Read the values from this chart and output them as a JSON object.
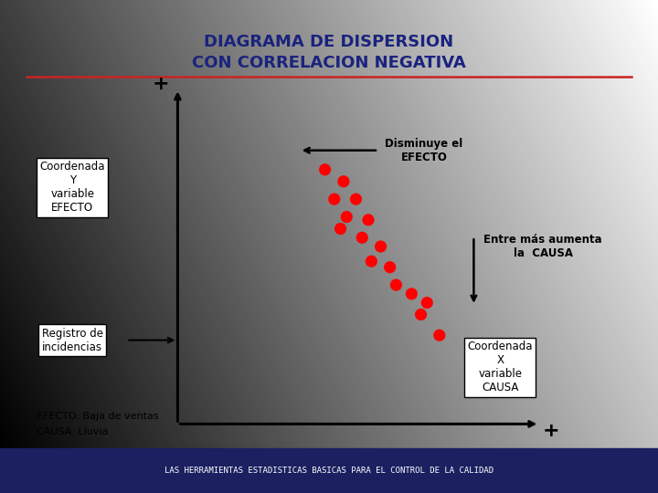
{
  "title_line1": "DIAGRAMA DE DISPERSION",
  "title_line2": "CON CORRELACION NEGATIVA",
  "title_color": "#1a237e",
  "title_fontsize": 13,
  "footer_text": "LAS HERRAMIENTAS ESTADISTICAS BASICAS PARA EL CONTROL DE LA CALIDAD",
  "footer_color": "#ffffff",
  "footer_bg": "#1a2060",
  "red_line_color": "#cc2222",
  "scatter_x": [
    0.37,
    0.43,
    0.4,
    0.47,
    0.44,
    0.51,
    0.49,
    0.42,
    0.55,
    0.52,
    0.58,
    0.6,
    0.65,
    0.7,
    0.68,
    0.74
  ],
  "scatter_y": [
    0.76,
    0.72,
    0.66,
    0.66,
    0.6,
    0.59,
    0.53,
    0.56,
    0.5,
    0.45,
    0.43,
    0.37,
    0.34,
    0.31,
    0.27,
    0.2
  ],
  "dot_color": "#ff0000",
  "dot_size": 90,
  "label_coordenada": "Coordenada\nY\nvariable\nEFECTO",
  "label_registro": "Registro de\nincidencias",
  "label_efecto": "EFECTO: Baja de ventas",
  "label_causa": "CAUSA: Lluvia",
  "label_disminuye": "Disminuye el\nEFECTO",
  "label_entre": "Entre más aumenta\nla  CAUSA",
  "label_coord_x": "Coordenada\nX\nvariable\nCAUSA",
  "plus_top": "+",
  "plus_bottom": "+"
}
